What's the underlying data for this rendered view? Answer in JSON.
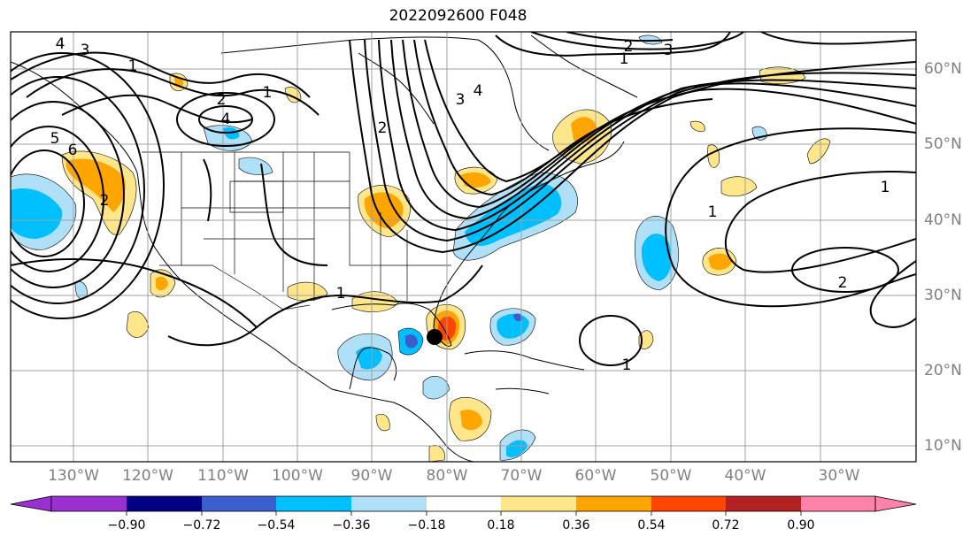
{
  "title": "2022092600 F048",
  "lon_labels": [
    "130°W",
    "120°W",
    "110°W",
    "100°W",
    "90°W",
    "80°W",
    "70°W",
    "60°W",
    "50°W",
    "40°W",
    "30°W"
  ],
  "lat_labels": [
    "60°N",
    "50°N",
    "40°N",
    "30°N",
    "20°N",
    "10°N"
  ],
  "colorbar": {
    "ticks": [
      "−0.90",
      "−0.72",
      "−0.54",
      "−0.36",
      "−0.18",
      "0.18",
      "0.36",
      "0.54",
      "0.72",
      "0.90"
    ],
    "colors": [
      "#9b30d0",
      "#000080",
      "#3a5fcd",
      "#00bfff",
      "#b0e0f8",
      "#ffffff",
      "#ffe68a",
      "#ffa500",
      "#ff4500",
      "#b22222",
      "#ff82ab"
    ]
  },
  "contour_labels": [
    "4",
    "3",
    "2",
    "1",
    "5",
    "6",
    "2",
    "1",
    "3",
    "2",
    "3",
    "4",
    "4",
    "1",
    "1",
    "1",
    "2",
    "1",
    "2",
    "1"
  ],
  "marker": {
    "label": "storm-center",
    "lon": -84.5,
    "lat": 24.5
  }
}
